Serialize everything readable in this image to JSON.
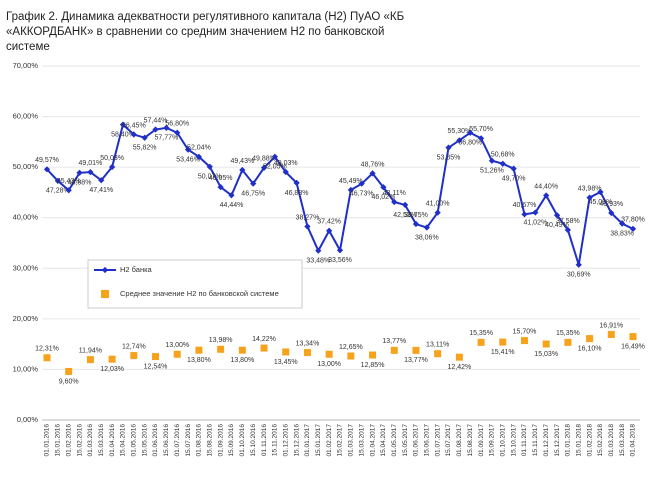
{
  "chart_data": {
    "type": "line",
    "title": "График 2. Динамика адекватности регулятивного капитала (Н2) ПуАО «КБ «АККОРДБАНК» в сравнении со средним значением Н2 по банковской системе",
    "categories": [
      "01.01.2016",
      "15.01.2016",
      "01.02.2016",
      "15.02.2016",
      "01.03.2016",
      "15.03.2016",
      "01.04.2016",
      "15.04.2016",
      "01.05.2016",
      "15.05.2016",
      "01.06.2016",
      "15.06.2016",
      "01.07.2016",
      "15.07.2016",
      "01.08.2016",
      "15.08.2016",
      "01.09.2016",
      "15.09.2016",
      "01.10.2016",
      "15.10.2016",
      "01.11.2016",
      "15.11.2016",
      "01.12.2016",
      "15.12.2016",
      "01.01.2017",
      "15.01.2017",
      "01.02.2017",
      "15.02.2017",
      "01.03.2017",
      "15.03.2017",
      "01.04.2017",
      "15.04.2017",
      "01.05.2017",
      "15.05.2017",
      "01.06.2017",
      "15.06.2017",
      "01.07.2017",
      "15.07.2017",
      "01.08.2017",
      "15.08.2017",
      "01.09.2017",
      "15.09.2017",
      "01.10.2017",
      "15.10.2017",
      "01.11.2017",
      "15.11.2017",
      "01.12.2017",
      "15.12.2017",
      "01.01.2018",
      "15.01.2018",
      "01.02.2018",
      "15.02.2018",
      "01.03.2018",
      "15.03.2018",
      "01.04.2018"
    ],
    "series": [
      {
        "name": "Н2 банка",
        "color": "#1f2fc8",
        "values": [
          49.57,
          47.28,
          45.43,
          48.88,
          49.01,
          47.41,
          50.03,
          58.4,
          56.45,
          55.82,
          57.44,
          57.77,
          56.8,
          53.46,
          52.04,
          50.07,
          46.05,
          44.44,
          49.43,
          46.75,
          49.88,
          52.05,
          49.03,
          46.88,
          38.27,
          33.48,
          37.42,
          33.56,
          45.49,
          46.73,
          48.76,
          46.02,
          43.11,
          42.53,
          38.75,
          38.06,
          41.0,
          53.85,
          55.3,
          56.8,
          55.7,
          51.26,
          50.68,
          49.7,
          40.67,
          41.02,
          44.4,
          40.49,
          37.58,
          30.69,
          43.98,
          45.09,
          40.93,
          38.83,
          37.8
        ],
        "value_labels": [
          "49,57%",
          "47,28%",
          "45,43%",
          "48,88%",
          "49,01%",
          "47,41%",
          "50,03%",
          "58,40%",
          "56,45%",
          "55,82%",
          "57,44%",
          "57,77%",
          "56,80%",
          "53,46%",
          "52,04%",
          "50,07%",
          "46,05%",
          "44,44%",
          "49,43%",
          "46,75%",
          "49,88%",
          "52,05%",
          "49,03%",
          "46,88%",
          "38,27%",
          "33,48%",
          "37,42%",
          "33,56%",
          "45,49%",
          "46,73%",
          "48,76%",
          "46,02%",
          "43,11%",
          "42,53%",
          "38,75%",
          "38,06%",
          "41,00%",
          "53,85%",
          "55,30%",
          "56,80%",
          "55,70%",
          "51,26%",
          "50,68%",
          "49,70%",
          "40,67%",
          "41,02%",
          "44,40%",
          "40,49%",
          "37,58%",
          "30,69%",
          "43,98%",
          "45,09%",
          "40,93%",
          "38,83%",
          "37,80%"
        ]
      },
      {
        "name": "Среднее значение Н2 по банковской системе",
        "color": "#f7a21b",
        "values": [
          12.31,
          null,
          9.6,
          null,
          11.94,
          null,
          12.03,
          null,
          12.74,
          null,
          12.54,
          null,
          13.0,
          null,
          13.8,
          null,
          13.98,
          null,
          13.8,
          null,
          14.22,
          null,
          13.45,
          null,
          13.34,
          null,
          13.0,
          null,
          12.65,
          null,
          12.85,
          null,
          13.77,
          null,
          13.77,
          null,
          13.11,
          null,
          12.42,
          null,
          15.35,
          null,
          15.41,
          null,
          15.7,
          null,
          15.03,
          null,
          15.35,
          null,
          16.1,
          null,
          16.91,
          null,
          16.49
        ],
        "value_labels": [
          "12,31%",
          null,
          "9,60%",
          null,
          "11,94%",
          null,
          "12,03%",
          null,
          "12,74%",
          null,
          "12,54%",
          null,
          "13,00%",
          null,
          "13,80%",
          null,
          "13,98%",
          null,
          "13,80%",
          null,
          "14,22%",
          null,
          "13,45%",
          null,
          "13,34%",
          null,
          "13,00%",
          null,
          "12,65%",
          null,
          "12,85%",
          null,
          "13,77%",
          null,
          "13,77%",
          null,
          "13,11%",
          null,
          "12,42%",
          null,
          "15,35%",
          null,
          "15,41%",
          null,
          "15,70%",
          null,
          "15,03%",
          null,
          "15,35%",
          null,
          "16,10%",
          null,
          "16,91%",
          null,
          "16,49%"
        ]
      }
    ],
    "ylim": [
      0,
      70
    ],
    "yticks": [
      {
        "value": 0,
        "label": "0,00%"
      },
      {
        "value": 10,
        "label": "10,00%"
      },
      {
        "value": 20,
        "label": "20,00%"
      },
      {
        "value": 30,
        "label": "30,00%"
      },
      {
        "value": 40,
        "label": "40,00%"
      },
      {
        "value": 50,
        "label": "50,00%"
      },
      {
        "value": 60,
        "label": "60,00%"
      },
      {
        "value": 70,
        "label": "70,00%"
      }
    ],
    "grid": true
  }
}
